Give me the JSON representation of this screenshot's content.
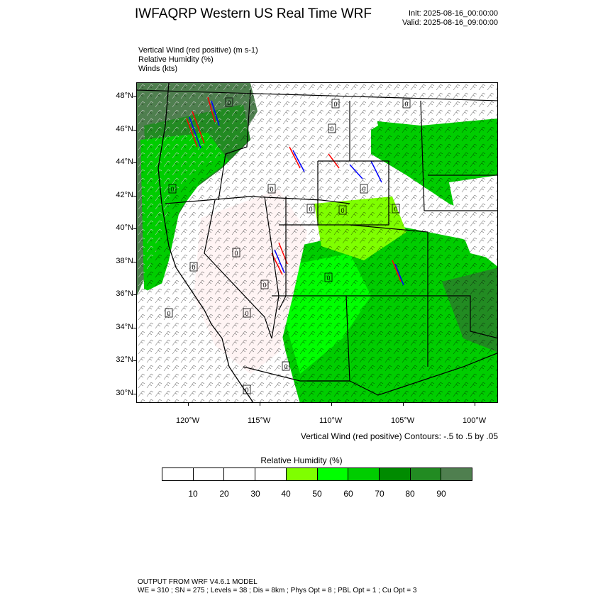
{
  "header": {
    "title": "IWFAQRP Western US Real Time WRF",
    "init": "Init: 2025-08-16_00:00:00",
    "valid": "Valid: 2025-08-16_09:00:00"
  },
  "variables": [
    "Vertical Wind (red positive)   (m s-1)",
    "Relative Humidity   (%)",
    "Winds   (kts)"
  ],
  "map": {
    "lat_labels": [
      "48°N",
      "46°N",
      "44°N",
      "42°N",
      "40°N",
      "38°N",
      "36°N",
      "34°N",
      "32°N",
      "30°N"
    ],
    "lon_labels": [
      "120°W",
      "115°W",
      "110°W",
      "105°W",
      "100°W"
    ],
    "contour_labels": [
      "0",
      "0",
      "0",
      "0",
      "0",
      "0",
      "0",
      "0",
      "0",
      "0",
      "0",
      "0",
      "0",
      "0",
      "0",
      "0",
      "0",
      "0"
    ]
  },
  "contour_note": "Vertical Wind (red positive) Contours: -.5 to .5 by .05",
  "colorbar": {
    "title": "Relative Humidity   (%)",
    "labels": [
      "10",
      "20",
      "30",
      "40",
      "50",
      "60",
      "70",
      "80",
      "90"
    ],
    "colors": [
      "#ffffff",
      "#ffffff",
      "#ffffff",
      "#ffffff",
      "#7fff00",
      "#00ff00",
      "#00cd00",
      "#008b00",
      "#228b22",
      "#4f7f4f"
    ]
  },
  "footer": {
    "line1": "OUTPUT FROM WRF V4.6.1 MODEL",
    "line2": "WE = 310 ; SN = 275 ; Levels = 38 ; Dis = 8km ; Phys Opt = 8 ; PBL Opt = 1 ; Cu Opt = 3"
  }
}
